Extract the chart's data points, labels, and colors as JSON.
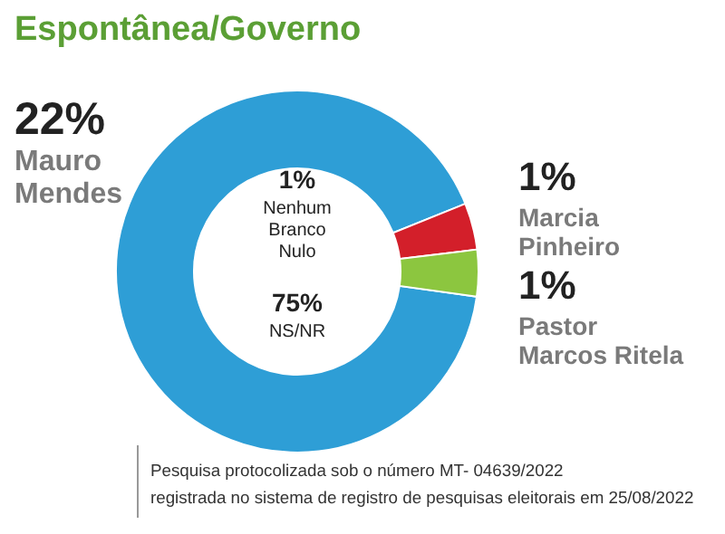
{
  "chart_data": {
    "type": "donut",
    "title": "Espontânea/Governo",
    "categories": [
      "Mauro Mendes",
      "Marcia Pinheiro",
      "Pastor Marcos Ritela"
    ],
    "values": [
      22,
      1,
      1
    ],
    "colors": [
      "#2e9ed6",
      "#d31f2a",
      "#8cc63f"
    ],
    "value_labels": [
      "22%",
      "1%",
      "1%"
    ],
    "annotations": [
      "1%\nNenhum\nBranco\nNulo",
      "75%\nNS/NR",
      "Pesquisa protocolizada sob o número MT- 04639/2022\nregistrada no sistema de registro de pesquisas eleitorais em 25/08/2022"
    ]
  }
}
